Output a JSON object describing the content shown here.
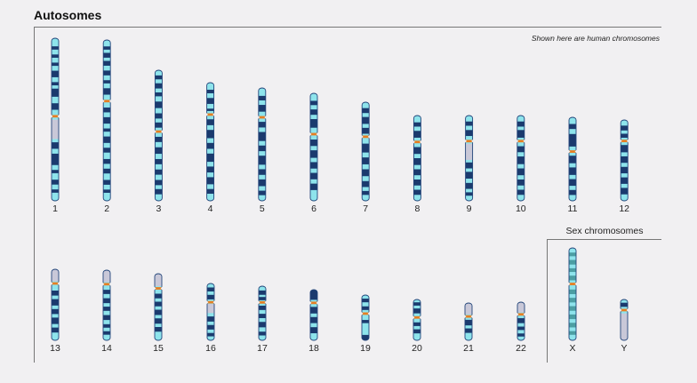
{
  "title": "Autosomes",
  "note": "Shown here are human chromosomes",
  "sex_title": "Sex chromosomes",
  "colors": {
    "light_band": "#8ee4ec",
    "dark_band": "#1b3a6e",
    "centromere": "#e67e22",
    "outline": "#23457a",
    "heterochromatin": "#c9c8d8",
    "x_band": "#4b9ea3",
    "frame": "#777777",
    "background": "#f1f0f2"
  },
  "chromosomes": [
    {
      "label": "1",
      "row": 1,
      "len": 183,
      "cen": 0.48,
      "sat": false,
      "het": [
        0.5,
        0.62
      ],
      "dark": [
        [
          0.05,
          0.07
        ],
        [
          0.1,
          0.12
        ],
        [
          0.15,
          0.17
        ],
        [
          0.2,
          0.24
        ],
        [
          0.27,
          0.29
        ],
        [
          0.31,
          0.36
        ],
        [
          0.4,
          0.44
        ],
        [
          0.64,
          0.68
        ],
        [
          0.71,
          0.78
        ],
        [
          0.81,
          0.83
        ],
        [
          0.87,
          0.9
        ],
        [
          0.93,
          0.95
        ]
      ]
    },
    {
      "label": "2",
      "row": 1,
      "len": 181,
      "cen": 0.38,
      "sat": false,
      "dark": [
        [
          0.04,
          0.06
        ],
        [
          0.08,
          0.11
        ],
        [
          0.13,
          0.16
        ],
        [
          0.19,
          0.22
        ],
        [
          0.25,
          0.27
        ],
        [
          0.3,
          0.34
        ],
        [
          0.42,
          0.45
        ],
        [
          0.48,
          0.52
        ],
        [
          0.55,
          0.57
        ],
        [
          0.6,
          0.64
        ],
        [
          0.67,
          0.7
        ],
        [
          0.74,
          0.77
        ],
        [
          0.8,
          0.83
        ],
        [
          0.87,
          0.9
        ],
        [
          0.93,
          0.95
        ]
      ]
    },
    {
      "label": "3",
      "row": 1,
      "len": 147,
      "cen": 0.47,
      "sat": false,
      "dark": [
        [
          0.04,
          0.07
        ],
        [
          0.1,
          0.14
        ],
        [
          0.17,
          0.2
        ],
        [
          0.24,
          0.29
        ],
        [
          0.33,
          0.37
        ],
        [
          0.4,
          0.44
        ],
        [
          0.51,
          0.55
        ],
        [
          0.59,
          0.64
        ],
        [
          0.68,
          0.72
        ],
        [
          0.76,
          0.8
        ],
        [
          0.84,
          0.88
        ],
        [
          0.91,
          0.95
        ]
      ]
    },
    {
      "label": "4",
      "row": 1,
      "len": 133,
      "cen": 0.27,
      "sat": false,
      "dark": [
        [
          0.06,
          0.09
        ],
        [
          0.13,
          0.18
        ],
        [
          0.22,
          0.24
        ],
        [
          0.31,
          0.36
        ],
        [
          0.4,
          0.47
        ],
        [
          0.51,
          0.56
        ],
        [
          0.6,
          0.67
        ],
        [
          0.71,
          0.76
        ],
        [
          0.8,
          0.86
        ],
        [
          0.9,
          0.94
        ]
      ]
    },
    {
      "label": "5",
      "row": 1,
      "len": 127,
      "cen": 0.26,
      "sat": false,
      "dark": [
        [
          0.07,
          0.11
        ],
        [
          0.15,
          0.21
        ],
        [
          0.3,
          0.35
        ],
        [
          0.39,
          0.47
        ],
        [
          0.51,
          0.56
        ],
        [
          0.6,
          0.68
        ],
        [
          0.72,
          0.77
        ],
        [
          0.81,
          0.87
        ],
        [
          0.91,
          0.95
        ]
      ]
    },
    {
      "label": "6",
      "row": 1,
      "len": 121,
      "cen": 0.38,
      "sat": false,
      "dark": [
        [
          0.07,
          0.11
        ],
        [
          0.15,
          0.2
        ],
        [
          0.24,
          0.32
        ],
        [
          0.43,
          0.49
        ],
        [
          0.53,
          0.6
        ],
        [
          0.64,
          0.7
        ],
        [
          0.74,
          0.8
        ],
        [
          0.84,
          0.9
        ]
      ]
    },
    {
      "label": "7",
      "row": 1,
      "len": 111,
      "cen": 0.35,
      "sat": false,
      "dark": [
        [
          0.06,
          0.11
        ],
        [
          0.15,
          0.22
        ],
        [
          0.26,
          0.32
        ],
        [
          0.42,
          0.51
        ],
        [
          0.56,
          0.63
        ],
        [
          0.68,
          0.75
        ],
        [
          0.8,
          0.86
        ],
        [
          0.9,
          0.94
        ]
      ]
    },
    {
      "label": "8",
      "row": 1,
      "len": 96,
      "cen": 0.31,
      "sat": false,
      "dark": [
        [
          0.08,
          0.13
        ],
        [
          0.18,
          0.26
        ],
        [
          0.37,
          0.45
        ],
        [
          0.5,
          0.58
        ],
        [
          0.63,
          0.7
        ],
        [
          0.75,
          0.82
        ],
        [
          0.87,
          0.93
        ]
      ]
    },
    {
      "label": "9",
      "row": 1,
      "len": 96,
      "cen": 0.3,
      "sat": false,
      "het": [
        0.33,
        0.52
      ],
      "dark": [
        [
          0.07,
          0.12
        ],
        [
          0.17,
          0.24
        ],
        [
          0.55,
          0.62
        ],
        [
          0.66,
          0.74
        ],
        [
          0.79,
          0.86
        ],
        [
          0.9,
          0.94
        ]
      ]
    },
    {
      "label": "10",
      "row": 1,
      "len": 96,
      "cen": 0.3,
      "sat": false,
      "dark": [
        [
          0.07,
          0.13
        ],
        [
          0.17,
          0.26
        ],
        [
          0.36,
          0.43
        ],
        [
          0.48,
          0.57
        ],
        [
          0.62,
          0.7
        ],
        [
          0.75,
          0.82
        ],
        [
          0.87,
          0.93
        ]
      ]
    },
    {
      "label": "11",
      "row": 1,
      "len": 94,
      "cen": 0.41,
      "sat": false,
      "dark": [
        [
          0.08,
          0.14
        ],
        [
          0.2,
          0.35
        ],
        [
          0.46,
          0.55
        ],
        [
          0.6,
          0.69
        ],
        [
          0.74,
          0.82
        ],
        [
          0.87,
          0.93
        ]
      ]
    },
    {
      "label": "12",
      "row": 1,
      "len": 91,
      "cen": 0.26,
      "sat": false,
      "dark": [
        [
          0.07,
          0.13
        ],
        [
          0.17,
          0.22
        ],
        [
          0.31,
          0.4
        ],
        [
          0.45,
          0.53
        ],
        [
          0.58,
          0.66
        ],
        [
          0.71,
          0.79
        ],
        [
          0.84,
          0.92
        ]
      ]
    },
    {
      "label": "13",
      "row": 2,
      "len": 80,
      "cen": 0.2,
      "sat": true,
      "dark": [
        [
          0.3,
          0.37
        ],
        [
          0.42,
          0.51
        ],
        [
          0.56,
          0.63
        ],
        [
          0.68,
          0.77
        ],
        [
          0.82,
          0.89
        ]
      ]
    },
    {
      "label": "14",
      "row": 2,
      "len": 79,
      "cen": 0.2,
      "sat": true,
      "dark": [
        [
          0.28,
          0.34
        ],
        [
          0.4,
          0.47
        ],
        [
          0.52,
          0.58
        ],
        [
          0.64,
          0.71
        ],
        [
          0.77,
          0.82
        ],
        [
          0.87,
          0.92
        ]
      ]
    },
    {
      "label": "15",
      "row": 2,
      "len": 75,
      "cen": 0.22,
      "sat": true,
      "dark": [
        [
          0.3,
          0.37
        ],
        [
          0.42,
          0.49
        ],
        [
          0.54,
          0.62
        ],
        [
          0.67,
          0.75
        ],
        [
          0.8,
          0.87
        ]
      ]
    },
    {
      "label": "16",
      "row": 2,
      "len": 64,
      "cen": 0.33,
      "sat": false,
      "het": [
        0.36,
        0.52
      ],
      "dark": [
        [
          0.07,
          0.14
        ],
        [
          0.2,
          0.28
        ],
        [
          0.58,
          0.67
        ],
        [
          0.73,
          0.81
        ],
        [
          0.87,
          0.93
        ]
      ]
    },
    {
      "label": "17",
      "row": 2,
      "len": 61,
      "cen": 0.3,
      "sat": false,
      "dark": [
        [
          0.08,
          0.16
        ],
        [
          0.2,
          0.26
        ],
        [
          0.36,
          0.44
        ],
        [
          0.51,
          0.59
        ],
        [
          0.66,
          0.76
        ],
        [
          0.84,
          0.91
        ]
      ]
    },
    {
      "label": "18",
      "row": 2,
      "len": 57,
      "cen": 0.26,
      "sat": false,
      "dark": [
        [
          0.0,
          0.2
        ],
        [
          0.34,
          0.47
        ],
        [
          0.54,
          0.66
        ],
        [
          0.74,
          0.86
        ]
      ]
    },
    {
      "label": "19",
      "row": 2,
      "len": 51,
      "cen": 0.41,
      "sat": false,
      "dark": [
        [
          0.08,
          0.16
        ],
        [
          0.25,
          0.33
        ],
        [
          0.55,
          0.62
        ],
        [
          0.88,
          1.0
        ]
      ]
    },
    {
      "label": "20",
      "row": 2,
      "len": 46,
      "cen": 0.44,
      "sat": false,
      "dark": [
        [
          0.07,
          0.15
        ],
        [
          0.22,
          0.34
        ],
        [
          0.56,
          0.65
        ],
        [
          0.73,
          0.83
        ]
      ]
    },
    {
      "label": "21",
      "row": 2,
      "len": 42,
      "cen": 0.36,
      "sat": true,
      "dark": [
        [
          0.45,
          0.6
        ],
        [
          0.68,
          0.8
        ]
      ]
    },
    {
      "label": "22",
      "row": 2,
      "len": 43,
      "cen": 0.32,
      "sat": true,
      "dark": [
        [
          0.42,
          0.55
        ],
        [
          0.64,
          0.73
        ],
        [
          0.82,
          0.9
        ]
      ]
    },
    {
      "label": "X",
      "row": 2,
      "len": 104,
      "cen": 0.39,
      "sat": false,
      "xbands": true,
      "dark": [
        [
          0.05,
          0.09
        ],
        [
          0.13,
          0.18
        ],
        [
          0.22,
          0.26
        ],
        [
          0.3,
          0.35
        ],
        [
          0.45,
          0.5
        ],
        [
          0.54,
          0.59
        ],
        [
          0.63,
          0.68
        ],
        [
          0.72,
          0.77
        ],
        [
          0.81,
          0.86
        ],
        [
          0.9,
          0.94
        ]
      ]
    },
    {
      "label": "Y",
      "row": 2,
      "len": 46,
      "cen": 0.26,
      "sat": false,
      "het": [
        0.34,
        1.0
      ],
      "dark": [
        [
          0.08,
          0.18
        ]
      ]
    }
  ]
}
